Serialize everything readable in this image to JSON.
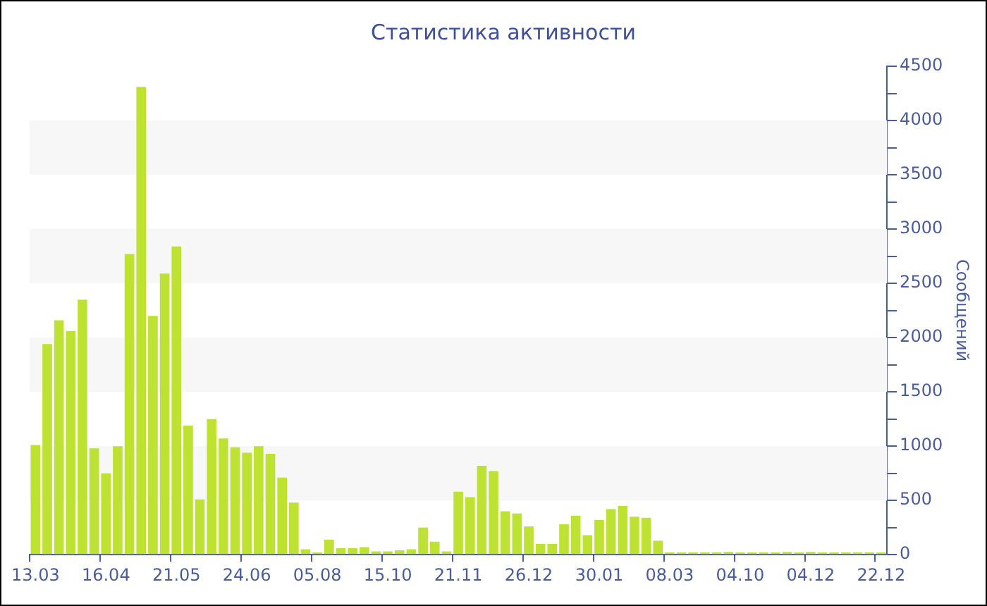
{
  "chart_data": {
    "type": "bar",
    "title": "Статистика активности",
    "ylabel": "Сообщений",
    "categories": [
      "13.03",
      null,
      null,
      null,
      null,
      null,
      "16.04",
      null,
      null,
      null,
      null,
      null,
      "21.05",
      null,
      null,
      null,
      null,
      null,
      "24.06",
      null,
      null,
      null,
      null,
      null,
      "05.08",
      null,
      null,
      null,
      null,
      null,
      "15.10",
      null,
      null,
      null,
      null,
      null,
      "21.11",
      null,
      null,
      null,
      null,
      null,
      "26.12",
      null,
      null,
      null,
      null,
      null,
      "30.01",
      null,
      null,
      null,
      null,
      null,
      "08.03",
      null,
      null,
      null,
      null,
      null,
      "04.10",
      null,
      null,
      null,
      null,
      null,
      "04.12",
      null,
      null,
      null,
      null,
      null,
      "22.12"
    ],
    "values": [
      1010,
      1940,
      2160,
      2060,
      2350,
      980,
      750,
      1000,
      2770,
      4310,
      2200,
      2590,
      2840,
      1190,
      510,
      1250,
      1070,
      990,
      940,
      1000,
      930,
      710,
      480,
      50,
      20,
      140,
      60,
      60,
      70,
      30,
      30,
      40,
      50,
      250,
      120,
      30,
      580,
      530,
      820,
      770,
      400,
      380,
      260,
      100,
      100,
      280,
      360,
      180,
      320,
      420,
      450,
      350,
      340,
      130,
      20,
      20,
      20,
      20,
      20,
      25,
      20,
      20,
      20,
      20,
      25,
      20,
      25,
      20,
      20,
      20,
      20,
      20,
      20
    ],
    "color": "#bde232",
    "ylim": [
      0,
      4500
    ],
    "yticks": [
      0,
      {
        "value": 250,
        "label": null
      },
      500,
      {
        "value": 750,
        "label": null
      },
      1000,
      {
        "value": 1250,
        "label": null
      },
      1500,
      {
        "value": 1750,
        "label": null
      },
      2000,
      {
        "value": 2250,
        "label": null
      },
      2500,
      {
        "value": 2750,
        "label": null
      },
      3000,
      {
        "value": 3250,
        "label": null
      },
      3500,
      {
        "value": 3750,
        "label": null
      },
      4000,
      {
        "value": 4250,
        "label": null
      },
      4500
    ],
    "bands": [
      {
        "axis": "y",
        "from": 500,
        "to": 1000,
        "color": "#f7f7f7"
      },
      {
        "axis": "y",
        "from": 1500,
        "to": 2000,
        "color": "#f7f7f7"
      },
      {
        "axis": "y",
        "from": 2500,
        "to": 3000,
        "color": "#f7f7f7"
      },
      {
        "axis": "y",
        "from": 3500,
        "to": 4000,
        "color": "#f7f7f7"
      }
    ],
    "grid": false,
    "legend": false
  }
}
